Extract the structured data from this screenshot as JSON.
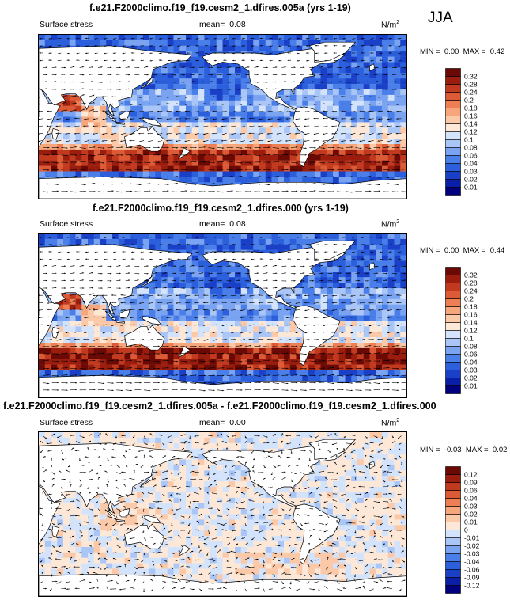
{
  "season": "JJA",
  "chart_data": [
    {
      "type": "heatmap",
      "title": "f.e21.F2000climo.f19_f19.cesm2_1.dfires.005a (yrs 1-19)",
      "left_label": "Surface stress",
      "mean_label": "mean=",
      "mean_value": "0.08",
      "units": "N/m",
      "units_exp": "2",
      "min_label": "MIN =",
      "min_value": "0.00",
      "max_label": "MAX =",
      "max_value": "0.42",
      "scale": "sequential",
      "colorbar_levels": [
        "0.01",
        "0.02",
        "0.03",
        "0.04",
        "0.06",
        "0.08",
        "0.1",
        "0.12",
        "0.14",
        "0.16",
        "0.18",
        "0.2",
        "0.24",
        "0.28",
        "0.32"
      ],
      "colorbar_colors": [
        "#00007f",
        "#0a1fa8",
        "#1a40c8",
        "#2c5fdc",
        "#4a7fea",
        "#7aa3f2",
        "#a9c6f7",
        "#d3e3fb",
        "#fde8d8",
        "#fcc9a8",
        "#f7a67c",
        "#ee7f55",
        "#dc5a35",
        "#c13a1f",
        "#9b1d0e",
        "#6b0a05"
      ]
    },
    {
      "type": "heatmap",
      "title": "f.e21.F2000climo.f19_f19.cesm2_1.dfires.000 (yrs 1-19)",
      "left_label": "Surface stress",
      "mean_label": "mean=",
      "mean_value": "0.08",
      "units": "N/m",
      "units_exp": "2",
      "min_label": "MIN =",
      "min_value": "0.00",
      "max_label": "MAX =",
      "max_value": "0.44",
      "scale": "sequential",
      "colorbar_levels": [
        "0.01",
        "0.02",
        "0.03",
        "0.04",
        "0.06",
        "0.08",
        "0.1",
        "0.12",
        "0.14",
        "0.16",
        "0.18",
        "0.2",
        "0.24",
        "0.28",
        "0.32"
      ],
      "colorbar_colors": [
        "#00007f",
        "#0a1fa8",
        "#1a40c8",
        "#2c5fdc",
        "#4a7fea",
        "#7aa3f2",
        "#a9c6f7",
        "#d3e3fb",
        "#fde8d8",
        "#fcc9a8",
        "#f7a67c",
        "#ee7f55",
        "#dc5a35",
        "#c13a1f",
        "#9b1d0e",
        "#6b0a05"
      ]
    },
    {
      "type": "heatmap",
      "title": "f.e21.F2000climo.f19_f19.cesm2_1.dfires.005a - f.e21.F2000climo.f19_f19.cesm2_1.dfires.000",
      "left_label": "Surface stress",
      "mean_label": "mean=",
      "mean_value": "0.00",
      "units": "N/m",
      "units_exp": "2",
      "min_label": "MIN =",
      "min_value": "-0.03",
      "max_label": "MAX =",
      "max_value": "0.02",
      "scale": "diverging",
      "colorbar_levels": [
        "-0.12",
        "-0.09",
        "-0.06",
        "-0.04",
        "-0.03",
        "-0.02",
        "-0.01",
        "0",
        "0.01",
        "0.02",
        "0.03",
        "0.04",
        "0.06",
        "0.09",
        "0.12"
      ],
      "colorbar_colors": [
        "#00007f",
        "#0a1fa8",
        "#1a40c8",
        "#2c5fdc",
        "#4a7fea",
        "#7aa3f2",
        "#a9c6f7",
        "#d3e3fb",
        "#fde8d8",
        "#fcc9a8",
        "#f7a67c",
        "#ee7f55",
        "#dc5a35",
        "#c13a1f",
        "#9b1d0e",
        "#6b0a05"
      ]
    }
  ]
}
